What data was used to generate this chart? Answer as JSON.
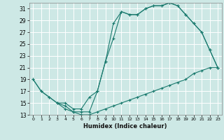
{
  "title": "",
  "xlabel": "Humidex (Indice chaleur)",
  "bg_color": "#cde8e5",
  "grid_color": "#ffffff",
  "line_color": "#1a7a6e",
  "xlim": [
    -0.5,
    23.5
  ],
  "ylim": [
    13,
    32
  ],
  "xticks": [
    0,
    1,
    2,
    3,
    4,
    5,
    6,
    7,
    8,
    9,
    10,
    11,
    12,
    13,
    14,
    15,
    16,
    17,
    18,
    19,
    20,
    21,
    22,
    23
  ],
  "yticks": [
    13,
    15,
    17,
    19,
    21,
    23,
    25,
    27,
    29,
    31
  ],
  "line1_x": [
    0,
    1,
    2,
    3,
    4,
    5,
    6,
    7,
    8,
    9,
    10,
    11,
    12,
    13,
    14,
    15,
    16,
    17,
    18,
    19,
    20,
    21,
    22,
    23
  ],
  "line1_y": [
    19,
    17,
    16,
    15,
    14,
    13.5,
    13.5,
    13.5,
    17,
    22,
    28.5,
    30.5,
    30,
    30,
    31,
    31.5,
    31.5,
    32,
    31.5,
    30,
    28.5,
    27,
    24,
    21
  ],
  "line2_x": [
    0,
    1,
    2,
    3,
    4,
    5,
    6,
    7,
    8,
    9,
    10,
    11,
    12,
    13,
    14,
    15,
    16,
    17,
    18,
    19,
    20,
    21,
    22,
    23
  ],
  "line2_y": [
    19,
    17,
    16,
    15,
    14.5,
    13.5,
    13,
    13,
    13.5,
    14,
    14.5,
    15,
    15.5,
    16,
    16.5,
    17,
    17.5,
    18,
    18.5,
    19,
    20,
    20.5,
    21,
    21
  ],
  "line3_x": [
    3,
    4,
    5,
    6,
    7,
    8,
    9,
    10,
    11,
    12,
    13,
    14,
    15,
    16,
    17,
    18,
    19,
    20,
    21,
    22,
    23
  ],
  "line3_y": [
    15,
    15,
    14,
    14,
    16,
    17,
    22,
    26,
    30.5,
    30,
    30,
    31,
    31.5,
    31.5,
    32,
    31.5,
    30,
    28.5,
    27,
    24,
    21
  ]
}
